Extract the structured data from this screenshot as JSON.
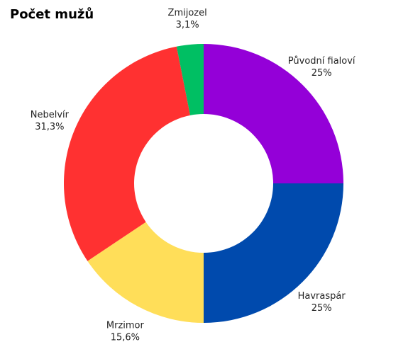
{
  "chart_data": {
    "type": "pie",
    "variant": "donut",
    "title": "Počet mužů",
    "categories": [
      "Původní fialoví",
      "Havraspár",
      "Mrzimor",
      "Nebelvír",
      "Zmijozel"
    ],
    "values": [
      25,
      25,
      15.6,
      31.3,
      3.1
    ],
    "value_labels": [
      "25%",
      "25%",
      "15,6%",
      "31,3%",
      "3,1%"
    ],
    "unit": "%",
    "colors": [
      "#9400D8",
      "#004AAD",
      "#FFDE59",
      "#FF3131",
      "#00BF63"
    ],
    "start": "top",
    "direction": "clockwise",
    "legend": "none",
    "labels": "outside"
  }
}
